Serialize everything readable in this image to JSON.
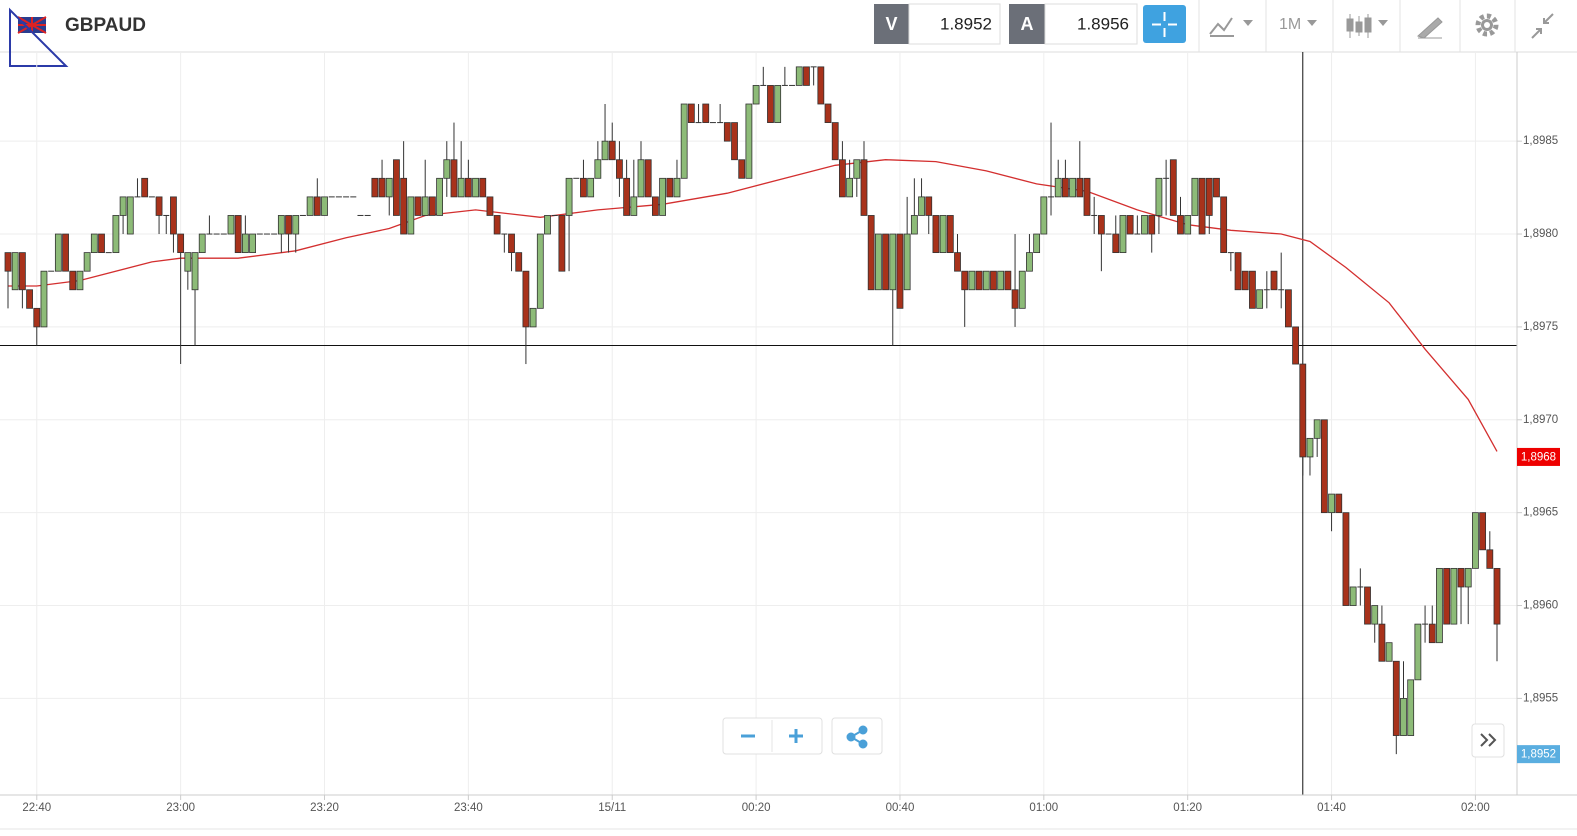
{
  "header": {
    "symbol": "GBPAUD",
    "bid_label": "V",
    "bid": "1.8952",
    "ask_label": "A",
    "ask": "1.8956",
    "timeframe": "1M"
  },
  "chart_data": {
    "type": "candlestick",
    "x": [
      "22:36",
      "22:37",
      "22:38",
      "22:39",
      "22:40",
      "22:41",
      "22:42",
      "22:43",
      "22:44",
      "22:45",
      "22:46",
      "22:47",
      "22:48",
      "22:49",
      "22:50",
      "22:51",
      "22:52",
      "22:53",
      "22:54",
      "22:55",
      "22:56",
      "22:57",
      "22:58",
      "22:59",
      "23:00",
      "23:01",
      "23:02",
      "23:03",
      "23:04",
      "23:05",
      "23:06",
      "23:07",
      "23:08",
      "23:09",
      "23:10",
      "23:11",
      "23:12",
      "23:13",
      "23:14",
      "23:15",
      "23:16",
      "23:17",
      "23:18",
      "23:19",
      "23:20",
      "23:21",
      "23:22",
      "23:23",
      "23:24",
      "23:25",
      "23:26",
      "23:27",
      "23:28",
      "23:29",
      "23:30",
      "23:31",
      "23:32",
      "23:33",
      "23:34",
      "23:35",
      "23:36",
      "23:37",
      "23:38",
      "23:39",
      "23:40",
      "23:41",
      "23:42",
      "23:43",
      "23:44",
      "23:45",
      "23:46",
      "23:47",
      "23:48",
      "23:49",
      "23:50",
      "23:51",
      "23:52",
      "23:53",
      "23:54",
      "23:55",
      "23:56",
      "23:57",
      "23:58",
      "23:59",
      "00:00",
      "00:01",
      "00:02",
      "00:03",
      "00:04",
      "00:05",
      "00:06",
      "00:07",
      "00:08",
      "00:09",
      "00:10",
      "00:11",
      "00:12",
      "00:13",
      "00:14",
      "00:15",
      "00:16",
      "00:17",
      "00:18",
      "00:19",
      "00:20",
      "00:21",
      "00:22",
      "00:23",
      "00:24",
      "00:25",
      "00:26",
      "00:27",
      "00:28",
      "00:29",
      "00:30",
      "00:31",
      "00:32",
      "00:33",
      "00:34",
      "00:35",
      "00:36",
      "00:37",
      "00:38",
      "00:39",
      "00:40",
      "00:41",
      "00:42",
      "00:43",
      "00:44",
      "00:45",
      "00:46",
      "00:47",
      "00:48",
      "00:49",
      "00:50",
      "00:51",
      "00:52",
      "00:53",
      "00:54",
      "00:55",
      "00:56",
      "00:57",
      "00:58",
      "00:59",
      "01:00",
      "01:01",
      "01:02",
      "01:03",
      "01:04",
      "01:05",
      "01:06",
      "01:07",
      "01:08",
      "01:09",
      "01:10",
      "01:11",
      "01:12",
      "01:13",
      "01:14",
      "01:15",
      "01:16",
      "01:17",
      "01:18",
      "01:19",
      "01:20",
      "01:21",
      "01:22",
      "01:23",
      "01:24",
      "01:25",
      "01:26",
      "01:27",
      "01:28",
      "01:29",
      "01:30",
      "01:31",
      "01:32",
      "01:33",
      "01:34",
      "01:35",
      "01:36",
      "01:37",
      "01:38",
      "01:39",
      "01:40",
      "01:41",
      "01:42",
      "01:43",
      "01:44",
      "01:45",
      "01:46",
      "01:47",
      "01:48",
      "01:49",
      "01:50",
      "01:51",
      "01:52",
      "01:53",
      "01:54",
      "01:55",
      "01:56",
      "01:57",
      "01:58",
      "01:59",
      "02:00",
      "02:01",
      "02:02",
      "02:03"
    ],
    "open": [
      1.8979,
      1.8977,
      1.8979,
      1.8977,
      1.8976,
      1.8975,
      1.8978,
      1.8978,
      1.898,
      1.8978,
      1.8977,
      1.8978,
      1.8979,
      1.898,
      1.8979,
      1.8979,
      1.8981,
      1.898,
      1.8982,
      1.8983,
      1.8982,
      1.8982,
      1.8981,
      1.8982,
      1.898,
      1.8978,
      1.8977,
      1.8979,
      1.898,
      1.898,
      1.898,
      1.898,
      1.8981,
      1.8979,
      1.8979,
      1.898,
      1.898,
      1.898,
      1.898,
      1.8981,
      1.898,
      1.8981,
      1.8981,
      1.8982,
      1.8981,
      1.8982,
      1.8982,
      1.8982,
      1.8982,
      1.8981,
      1.8981,
      1.8983,
      1.8983,
      1.8982,
      1.8984,
      1.8983,
      1.898,
      1.8982,
      1.8981,
      1.8982,
      1.8981,
      1.8983,
      1.8984,
      1.8982,
      1.8983,
      1.8982,
      1.8983,
      1.8982,
      1.8981,
      1.898,
      1.898,
      1.8979,
      1.8978,
      1.8975,
      1.8976,
      1.898,
      1.8981,
      1.8981,
      1.8981,
      1.8983,
      1.8983,
      1.8982,
      1.8983,
      1.8984,
      1.8985,
      1.8984,
      1.8983,
      1.8981,
      1.8982,
      1.8984,
      1.8982,
      1.8981,
      1.8983,
      1.8982,
      1.8983,
      1.8987,
      1.8986,
      1.8987,
      1.8986,
      1.8986,
      1.8986,
      1.8986,
      1.8984,
      1.8983,
      1.8987,
      1.8988,
      1.8988,
      1.8986,
      1.8988,
      1.8988,
      1.8988,
      1.8989,
      1.8989,
      1.8989,
      1.8987,
      1.8986,
      1.8984,
      1.8982,
      1.8983,
      1.8984,
      1.8981,
      1.8977,
      1.898,
      1.8977,
      1.898,
      1.8977,
      1.898,
      1.8981,
      1.8982,
      1.8981,
      1.8979,
      1.8981,
      1.8979,
      1.8978,
      1.8977,
      1.8978,
      1.8977,
      1.8978,
      1.8977,
      1.8978,
      1.8977,
      1.8976,
      1.8978,
      1.8979,
      1.898,
      1.8982,
      1.8982,
      1.8983,
      1.8982,
      1.8983,
      1.8983,
      1.8981,
      1.8981,
      1.898,
      1.898,
      1.8979,
      1.8981,
      1.898,
      1.898,
      1.8981,
      1.8981,
      1.8983,
      1.8984,
      1.8981,
      1.898,
      1.8981,
      1.8983,
      1.8983,
      1.8983,
      1.8982,
      1.8979,
      1.8979,
      1.8978,
      1.8978,
      1.8976,
      1.8977,
      1.8978,
      1.8977,
      1.8977,
      1.8975,
      1.8973,
      1.8968,
      1.8969,
      1.897,
      1.8965,
      1.8966,
      1.8965,
      1.896,
      1.8961,
      1.8961,
      1.8959,
      1.8959,
      1.8957,
      1.8957,
      1.8953,
      1.8953,
      1.8956,
      1.8959,
      1.8959,
      1.8958,
      1.8962,
      1.8959,
      1.8962,
      1.8961,
      1.8962,
      1.8965,
      1.8963,
      1.8962
    ],
    "high": [
      1.8979,
      1.8979,
      1.8979,
      1.8977,
      1.8976,
      1.8978,
      1.8978,
      1.898,
      1.898,
      1.8978,
      1.8978,
      1.8979,
      1.898,
      1.898,
      1.8979,
      1.8981,
      1.8982,
      1.8982,
      1.8983,
      1.8983,
      1.8982,
      1.8982,
      1.8981,
      1.8982,
      1.898,
      1.8979,
      1.8979,
      1.898,
      1.8981,
      1.898,
      1.898,
      1.8981,
      1.8981,
      1.8981,
      1.898,
      1.898,
      1.898,
      1.898,
      1.8981,
      1.8981,
      1.8981,
      1.8981,
      1.8982,
      1.8983,
      1.8982,
      1.8982,
      1.8982,
      1.8982,
      1.8982,
      1.8981,
      1.8981,
      1.8983,
      1.8984,
      1.8983,
      1.8984,
      1.8985,
      1.8982,
      1.8982,
      1.8984,
      1.8982,
      1.8983,
      1.8985,
      1.8986,
      1.8985,
      1.8984,
      1.8983,
      1.8983,
      1.8982,
      1.8981,
      1.898,
      1.898,
      1.8979,
      1.8978,
      1.8976,
      1.898,
      1.8981,
      1.8981,
      1.8981,
      1.8983,
      1.8983,
      1.8984,
      1.8983,
      1.8985,
      1.8987,
      1.8986,
      1.8985,
      1.8984,
      1.8984,
      1.8985,
      1.8984,
      1.8982,
      1.8983,
      1.8983,
      1.8984,
      1.8987,
      1.8987,
      1.8987,
      1.8987,
      1.8986,
      1.8987,
      1.8986,
      1.8986,
      1.8984,
      1.8987,
      1.8988,
      1.8989,
      1.8988,
      1.8988,
      1.8989,
      1.8988,
      1.8989,
      1.8989,
      1.8989,
      1.8989,
      1.8987,
      1.8986,
      1.8985,
      1.8984,
      1.8984,
      1.8985,
      1.8981,
      1.898,
      1.898,
      1.898,
      1.898,
      1.8982,
      1.8983,
      1.8983,
      1.8982,
      1.8981,
      1.8981,
      1.8981,
      1.898,
      1.8978,
      1.8978,
      1.8978,
      1.8978,
      1.8978,
      1.8978,
      1.8978,
      1.898,
      1.8978,
      1.898,
      1.898,
      1.8982,
      1.8986,
      1.8984,
      1.8984,
      1.8983,
      1.8985,
      1.8983,
      1.8982,
      1.8981,
      1.898,
      1.8981,
      1.8981,
      1.8981,
      1.8981,
      1.8981,
      1.8981,
      1.8983,
      1.8984,
      1.8984,
      1.8982,
      1.8981,
      1.8983,
      1.8983,
      1.8983,
      1.8983,
      1.8982,
      1.8979,
      1.8979,
      1.8978,
      1.8978,
      1.8977,
      1.8978,
      1.8978,
      1.8979,
      1.8977,
      1.8975,
      1.8973,
      1.8969,
      1.897,
      1.897,
      1.8966,
      1.8966,
      1.8965,
      1.8961,
      1.8962,
      1.8961,
      1.896,
      1.896,
      1.8958,
      1.8957,
      1.8957,
      1.8956,
      1.8959,
      1.896,
      1.896,
      1.8962,
      1.8962,
      1.8962,
      1.8962,
      1.8962,
      1.8965,
      1.8965,
      1.8964,
      1.8962
    ],
    "low": [
      1.8976,
      1.8977,
      1.8976,
      1.8976,
      1.8974,
      1.8975,
      1.8978,
      1.8978,
      1.8978,
      1.8977,
      1.8977,
      1.8978,
      1.8979,
      1.8979,
      1.8979,
      1.8979,
      1.898,
      1.898,
      1.8982,
      1.8982,
      1.8982,
      1.898,
      1.898,
      1.8979,
      1.8973,
      1.8977,
      1.8974,
      1.8979,
      1.898,
      1.898,
      1.898,
      1.898,
      1.8979,
      1.8979,
      1.8979,
      1.898,
      1.898,
      1.898,
      1.8979,
      1.8979,
      1.8979,
      1.8981,
      1.8981,
      1.8981,
      1.8981,
      1.8982,
      1.8982,
      1.8982,
      1.8982,
      1.8981,
      1.8981,
      1.8982,
      1.8982,
      1.8981,
      1.8981,
      1.898,
      1.898,
      1.8981,
      1.8981,
      1.8981,
      1.8981,
      1.8982,
      1.8982,
      1.8982,
      1.8982,
      1.8982,
      1.8982,
      1.8981,
      1.898,
      1.8979,
      1.8978,
      1.8978,
      1.8973,
      1.8975,
      1.8976,
      1.898,
      1.8981,
      1.8978,
      1.8978,
      1.8983,
      1.8982,
      1.8982,
      1.8983,
      1.8984,
      1.8984,
      1.8982,
      1.8981,
      1.8981,
      1.8982,
      1.8982,
      1.8981,
      1.8981,
      1.8982,
      1.8982,
      1.8983,
      1.8986,
      1.8986,
      1.8986,
      1.8986,
      1.8986,
      1.8985,
      1.8984,
      1.8983,
      1.8983,
      1.8987,
      1.8988,
      1.8986,
      1.8986,
      1.8988,
      1.8988,
      1.8988,
      1.8988,
      1.8988,
      1.8987,
      1.8986,
      1.8984,
      1.8982,
      1.8982,
      1.8982,
      1.8981,
      1.8977,
      1.8977,
      1.8977,
      1.8974,
      1.8976,
      1.8977,
      1.898,
      1.8981,
      1.898,
      1.8979,
      1.8979,
      1.8979,
      1.8978,
      1.8975,
      1.8977,
      1.8977,
      1.8977,
      1.8977,
      1.8977,
      1.8977,
      1.8975,
      1.8976,
      1.8978,
      1.8979,
      1.898,
      1.8981,
      1.8982,
      1.8982,
      1.8982,
      1.8982,
      1.8981,
      1.898,
      1.8978,
      1.898,
      1.8979,
      1.8979,
      1.898,
      1.898,
      1.898,
      1.8979,
      1.898,
      1.8981,
      1.8981,
      1.898,
      1.898,
      1.8981,
      1.898,
      1.898,
      1.8982,
      1.8979,
      1.8978,
      1.8977,
      1.8977,
      1.8976,
      1.8976,
      1.8976,
      1.8977,
      1.8976,
      1.8975,
      1.8973,
      1.8967,
      1.8967,
      1.8968,
      1.8965,
      1.8964,
      1.8965,
      1.896,
      1.896,
      1.896,
      1.8959,
      1.8958,
      1.8957,
      1.8957,
      1.8952,
      1.8953,
      1.8953,
      1.8956,
      1.8958,
      1.8958,
      1.8958,
      1.8959,
      1.8959,
      1.8959,
      1.8959,
      1.8962,
      1.8963,
      1.8962,
      1.8957
    ],
    "close": [
      1.8978,
      1.8979,
      1.8977,
      1.8976,
      1.8975,
      1.8978,
      1.8978,
      1.898,
      1.8978,
      1.8977,
      1.8978,
      1.8979,
      1.898,
      1.8979,
      1.8979,
      1.8981,
      1.8982,
      1.8982,
      1.8982,
      1.8982,
      1.8982,
      1.8981,
      1.8981,
      1.898,
      1.8979,
      1.8979,
      1.8979,
      1.898,
      1.898,
      1.898,
      1.898,
      1.8981,
      1.8979,
      1.898,
      1.898,
      1.898,
      1.898,
      1.898,
      1.8981,
      1.898,
      1.8981,
      1.8981,
      1.8982,
      1.8981,
      1.8982,
      1.8982,
      1.8982,
      1.8982,
      1.8982,
      1.8981,
      1.8981,
      1.8982,
      1.8982,
      1.8983,
      1.8981,
      1.898,
      1.8982,
      1.8981,
      1.8982,
      1.8981,
      1.8983,
      1.8984,
      1.8982,
      1.8983,
      1.8982,
      1.8983,
      1.8982,
      1.8981,
      1.898,
      1.898,
      1.8979,
      1.8978,
      1.8975,
      1.8976,
      1.898,
      1.8981,
      1.8981,
      1.8978,
      1.8983,
      1.8983,
      1.8982,
      1.8983,
      1.8984,
      1.8985,
      1.8984,
      1.8983,
      1.8981,
      1.8982,
      1.8984,
      1.8982,
      1.8981,
      1.8983,
      1.8982,
      1.8983,
      1.8987,
      1.8986,
      1.8986,
      1.8986,
      1.8986,
      1.8986,
      1.8985,
      1.8984,
      1.8983,
      1.8987,
      1.8988,
      1.8988,
      1.8986,
      1.8988,
      1.8988,
      1.8988,
      1.8989,
      1.8988,
      1.8989,
      1.8987,
      1.8986,
      1.8984,
      1.8982,
      1.8983,
      1.8984,
      1.8981,
      1.8977,
      1.898,
      1.8977,
      1.898,
      1.8976,
      1.898,
      1.8981,
      1.8982,
      1.8981,
      1.8979,
      1.8981,
      1.8979,
      1.8978,
      1.8977,
      1.8978,
      1.8977,
      1.8978,
      1.8977,
      1.8978,
      1.8977,
      1.8976,
      1.8978,
      1.8979,
      1.898,
      1.8982,
      1.8982,
      1.8983,
      1.8982,
      1.8983,
      1.8982,
      1.8981,
      1.8981,
      1.898,
      1.898,
      1.8979,
      1.8981,
      1.898,
      1.898,
      1.8981,
      1.898,
      1.8983,
      1.8983,
      1.8981,
      1.898,
      1.8981,
      1.8983,
      1.898,
      1.8981,
      1.8982,
      1.8979,
      1.8979,
      1.8977,
      1.8977,
      1.8976,
      1.8977,
      1.8977,
      1.8977,
      1.8977,
      1.8975,
      1.8973,
      1.8968,
      1.8969,
      1.897,
      1.8965,
      1.8966,
      1.8965,
      1.896,
      1.8961,
      1.8961,
      1.8959,
      1.896,
      1.8957,
      1.8958,
      1.8953,
      1.8955,
      1.8956,
      1.8959,
      1.8959,
      1.8958,
      1.8962,
      1.8959,
      1.8962,
      1.8961,
      1.8962,
      1.8965,
      1.8963,
      1.8962,
      1.8959
    ],
    "up_color": "#8dbb78",
    "down_color": "#a8321b",
    "ylim": [
      1.89498,
      1.89898
    ],
    "yticks": [
      {
        "value": 1.8955,
        "label": "1,8955"
      },
      {
        "value": 1.896,
        "label": "1,8960"
      },
      {
        "value": 1.8965,
        "label": "1,8965"
      },
      {
        "value": 1.897,
        "label": "1,8970"
      },
      {
        "value": 1.8975,
        "label": "1,8975"
      },
      {
        "value": 1.898,
        "label": "1,8980"
      },
      {
        "value": 1.8985,
        "label": "1,8985"
      }
    ],
    "xticks": [
      "22:40",
      "23:00",
      "23:20",
      "23:40",
      {
        "value": "00:00",
        "label": "15/11"
      },
      "00:20",
      "00:40",
      "01:00",
      "01:20",
      "01:40",
      "02:00"
    ],
    "grid": true,
    "moving_average": {
      "color": "#d32f2f",
      "x": [
        "22:36",
        "22:40",
        "22:46",
        "22:56",
        "23:00",
        "23:08",
        "23:16",
        "23:23",
        "23:29",
        "23:34",
        "23:41",
        "23:50",
        "23:58",
        "00:07",
        "00:16",
        "00:24",
        "00:31",
        "00:38",
        "00:45",
        "00:52",
        "00:59",
        "01:06",
        "01:13",
        "01:20",
        "01:26",
        "01:33",
        "01:37",
        "01:42",
        "01:48",
        "01:53",
        "01:59",
        "02:03"
      ],
      "values": [
        1.89772,
        1.89772,
        1.89775,
        1.89785,
        1.89787,
        1.89787,
        1.89791,
        1.89798,
        1.89803,
        1.8981,
        1.89813,
        1.89809,
        1.89813,
        1.89816,
        1.89822,
        1.8983,
        1.89837,
        1.8984,
        1.89839,
        1.89834,
        1.89827,
        1.89823,
        1.89813,
        1.89805,
        1.89802,
        1.898,
        1.89796,
        1.89782,
        1.89763,
        1.89738,
        1.89711,
        1.89683
      ]
    },
    "crosshair": {
      "x": "01:36",
      "y": 1.8974
    },
    "price_tags": [
      {
        "value": 1.8968,
        "label": "1,8968",
        "color": "#ee0000"
      },
      {
        "value": 1.8952,
        "label": "1,8952",
        "color": "#5aaee0"
      }
    ]
  }
}
